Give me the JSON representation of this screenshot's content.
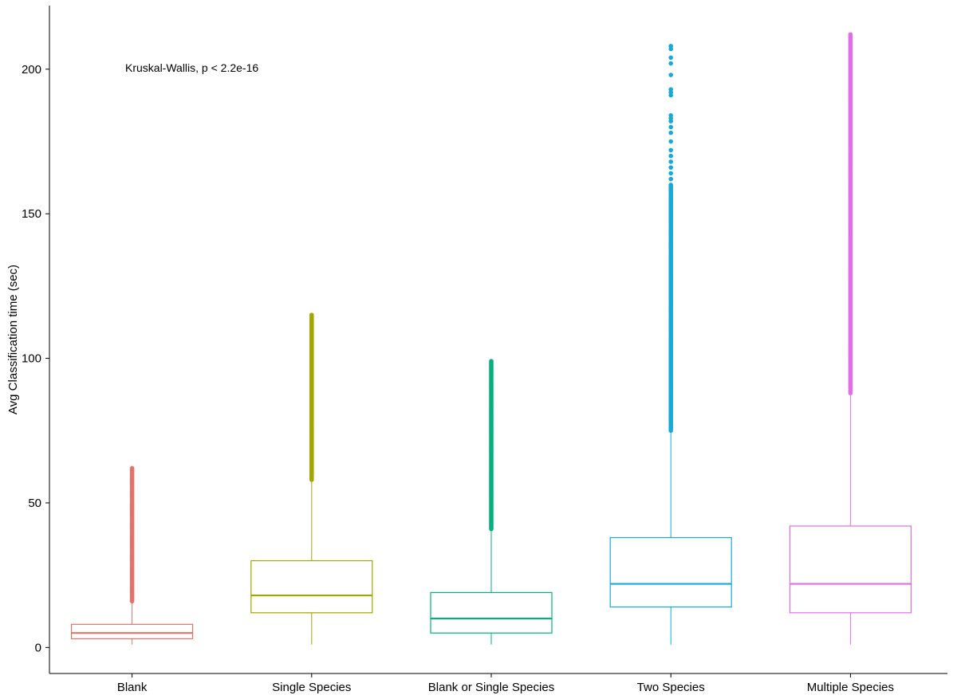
{
  "chart_data": {
    "type": "boxplot",
    "title": "",
    "xlabel": "",
    "ylabel": "Avg Classification time (sec)",
    "ylim": [
      -9,
      222
    ],
    "yticks": [
      0,
      50,
      100,
      150,
      200
    ],
    "grid": false,
    "legend": "none",
    "annotation": "Kruskal-Wallis, p < 2.2e-16",
    "categories": [
      "Blank",
      "Single Species",
      "Blank or Single Species",
      "Two Species",
      "Multiple Species"
    ],
    "colors": [
      "#E5726A",
      "#A3A500",
      "#00B07D",
      "#1AA9D6",
      "#E06EE8"
    ],
    "boxes": [
      {
        "min": 1,
        "q1": 3,
        "median": 5,
        "q3": 8,
        "whisker_high": 16,
        "outliers_from": 16,
        "outliers_to": 62,
        "outliers_dense_to": 62,
        "outliers_sparse": []
      },
      {
        "min": 1,
        "q1": 12,
        "median": 18,
        "q3": 30,
        "whisker_high": 58,
        "outliers_from": 58,
        "outliers_to": 115,
        "outliers_dense_to": 115,
        "outliers_sparse": []
      },
      {
        "min": 1,
        "q1": 5,
        "median": 10,
        "q3": 19,
        "whisker_high": 41,
        "outliers_from": 41,
        "outliers_to": 99,
        "outliers_dense_to": 99,
        "outliers_sparse": []
      },
      {
        "min": 1,
        "q1": 14,
        "median": 22,
        "q3": 38,
        "whisker_high": 75,
        "outliers_from": 75,
        "outliers_to": 208,
        "outliers_dense_to": 160,
        "outliers_sparse": [
          162,
          164,
          166,
          168,
          170,
          172,
          175,
          178,
          180,
          182,
          183,
          184,
          191,
          192,
          193,
          198,
          202,
          204,
          207,
          208
        ]
      },
      {
        "min": 1,
        "q1": 12,
        "median": 22,
        "q3": 42,
        "whisker_high": 88,
        "outliers_from": 88,
        "outliers_to": 212,
        "outliers_dense_to": 212,
        "outliers_sparse": []
      }
    ]
  }
}
